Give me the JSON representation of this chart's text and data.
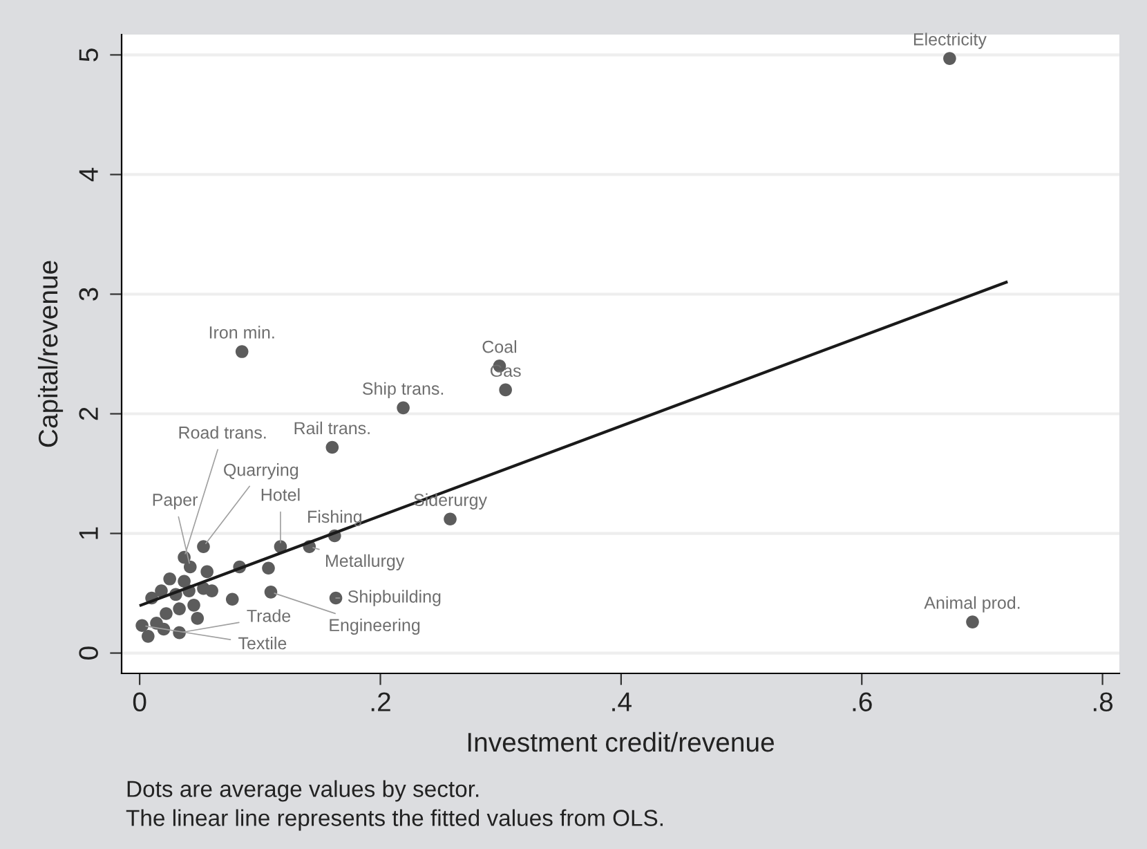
{
  "chart_data": {
    "type": "scatter",
    "xlabel": "Investment credit/revenue",
    "ylabel": "Capital/revenue",
    "xlim": [
      -0.015,
      0.814
    ],
    "ylim": [
      -0.17,
      5.17
    ],
    "xticks": [
      0,
      {
        "value": 0.2,
        "label": ".2"
      },
      {
        "value": 0.4,
        "label": ".4"
      },
      {
        "value": 0.6,
        "label": ".6"
      },
      {
        "value": 0.8,
        "label": ".8"
      }
    ],
    "yticks": [
      0,
      1,
      2,
      3,
      4,
      5
    ],
    "grid": "y",
    "series": [
      {
        "color": "#5c5c5c",
        "marker": "circle",
        "x": [
          0.673,
          0.692,
          0.299,
          0.304,
          0.219,
          0.16,
          0.085,
          0.258,
          0.162,
          0.141,
          0.117,
          0.053,
          0.037,
          0.042,
          0.083,
          0.107,
          0.109,
          0.163,
          0.077,
          0.01,
          0.018,
          0.03,
          0.041,
          0.053,
          0.06,
          0.045,
          0.033,
          0.022,
          0.014,
          0.007,
          0.02,
          0.048,
          0.056,
          0.037,
          0.025,
          0.002,
          0.033
        ],
        "values": [
          4.97,
          0.26,
          2.4,
          2.2,
          2.05,
          1.72,
          2.52,
          1.12,
          0.98,
          0.89,
          0.89,
          0.89,
          0.8,
          0.72,
          0.72,
          0.71,
          0.51,
          0.46,
          0.45,
          0.46,
          0.52,
          0.49,
          0.52,
          0.54,
          0.52,
          0.4,
          0.37,
          0.33,
          0.25,
          0.14,
          0.2,
          0.29,
          0.68,
          0.6,
          0.62,
          0.23,
          0.17
        ]
      },
      {
        "type": "line",
        "color": "#1a1a1a",
        "line_style": "solid",
        "x": [
          0.001,
          0.72
        ],
        "values": [
          0.4,
          3.1
        ]
      }
    ],
    "annotations": [
      {
        "text": "Electricity",
        "x": 0.673,
        "y": 4.97
      },
      {
        "text": "Animal prod.",
        "x": 0.692,
        "y": 0.26
      },
      {
        "text": "Coal",
        "x": 0.299,
        "y": 2.4
      },
      {
        "text": "Gas",
        "x": 0.304,
        "y": 2.2
      },
      {
        "text": "Ship trans.",
        "x": 0.219,
        "y": 2.05
      },
      {
        "text": "Rail trans.",
        "x": 0.16,
        "y": 1.72
      },
      {
        "text": "Iron min.",
        "x": 0.085,
        "y": 2.52
      },
      {
        "text": "Siderurgy",
        "x": 0.258,
        "y": 1.12
      },
      {
        "text": "Fishing",
        "x": 0.162,
        "y": 0.98
      },
      {
        "text": "Metallurgy",
        "x": 0.141,
        "y": 0.89
      },
      {
        "text": "Hotel",
        "x": 0.117,
        "y": 0.89
      },
      {
        "text": "Quarrying",
        "x": 0.053,
        "y": 0.89
      },
      {
        "text": "Road trans.",
        "x": 0.037,
        "y": 0.8
      },
      {
        "text": "Paper",
        "x": 0.042,
        "y": 0.72
      },
      {
        "text": "Engineering",
        "x": 0.109,
        "y": 0.51
      },
      {
        "text": "Shipbuilding",
        "x": 0.163,
        "y": 0.46
      },
      {
        "text": "Textile",
        "x": 0.002,
        "y": 0.23
      },
      {
        "text": "Trade",
        "x": 0.033,
        "y": 0.17
      },
      "Dots are average values by sector.",
      "The linear line represents the fitted values from OLS."
    ]
  }
}
